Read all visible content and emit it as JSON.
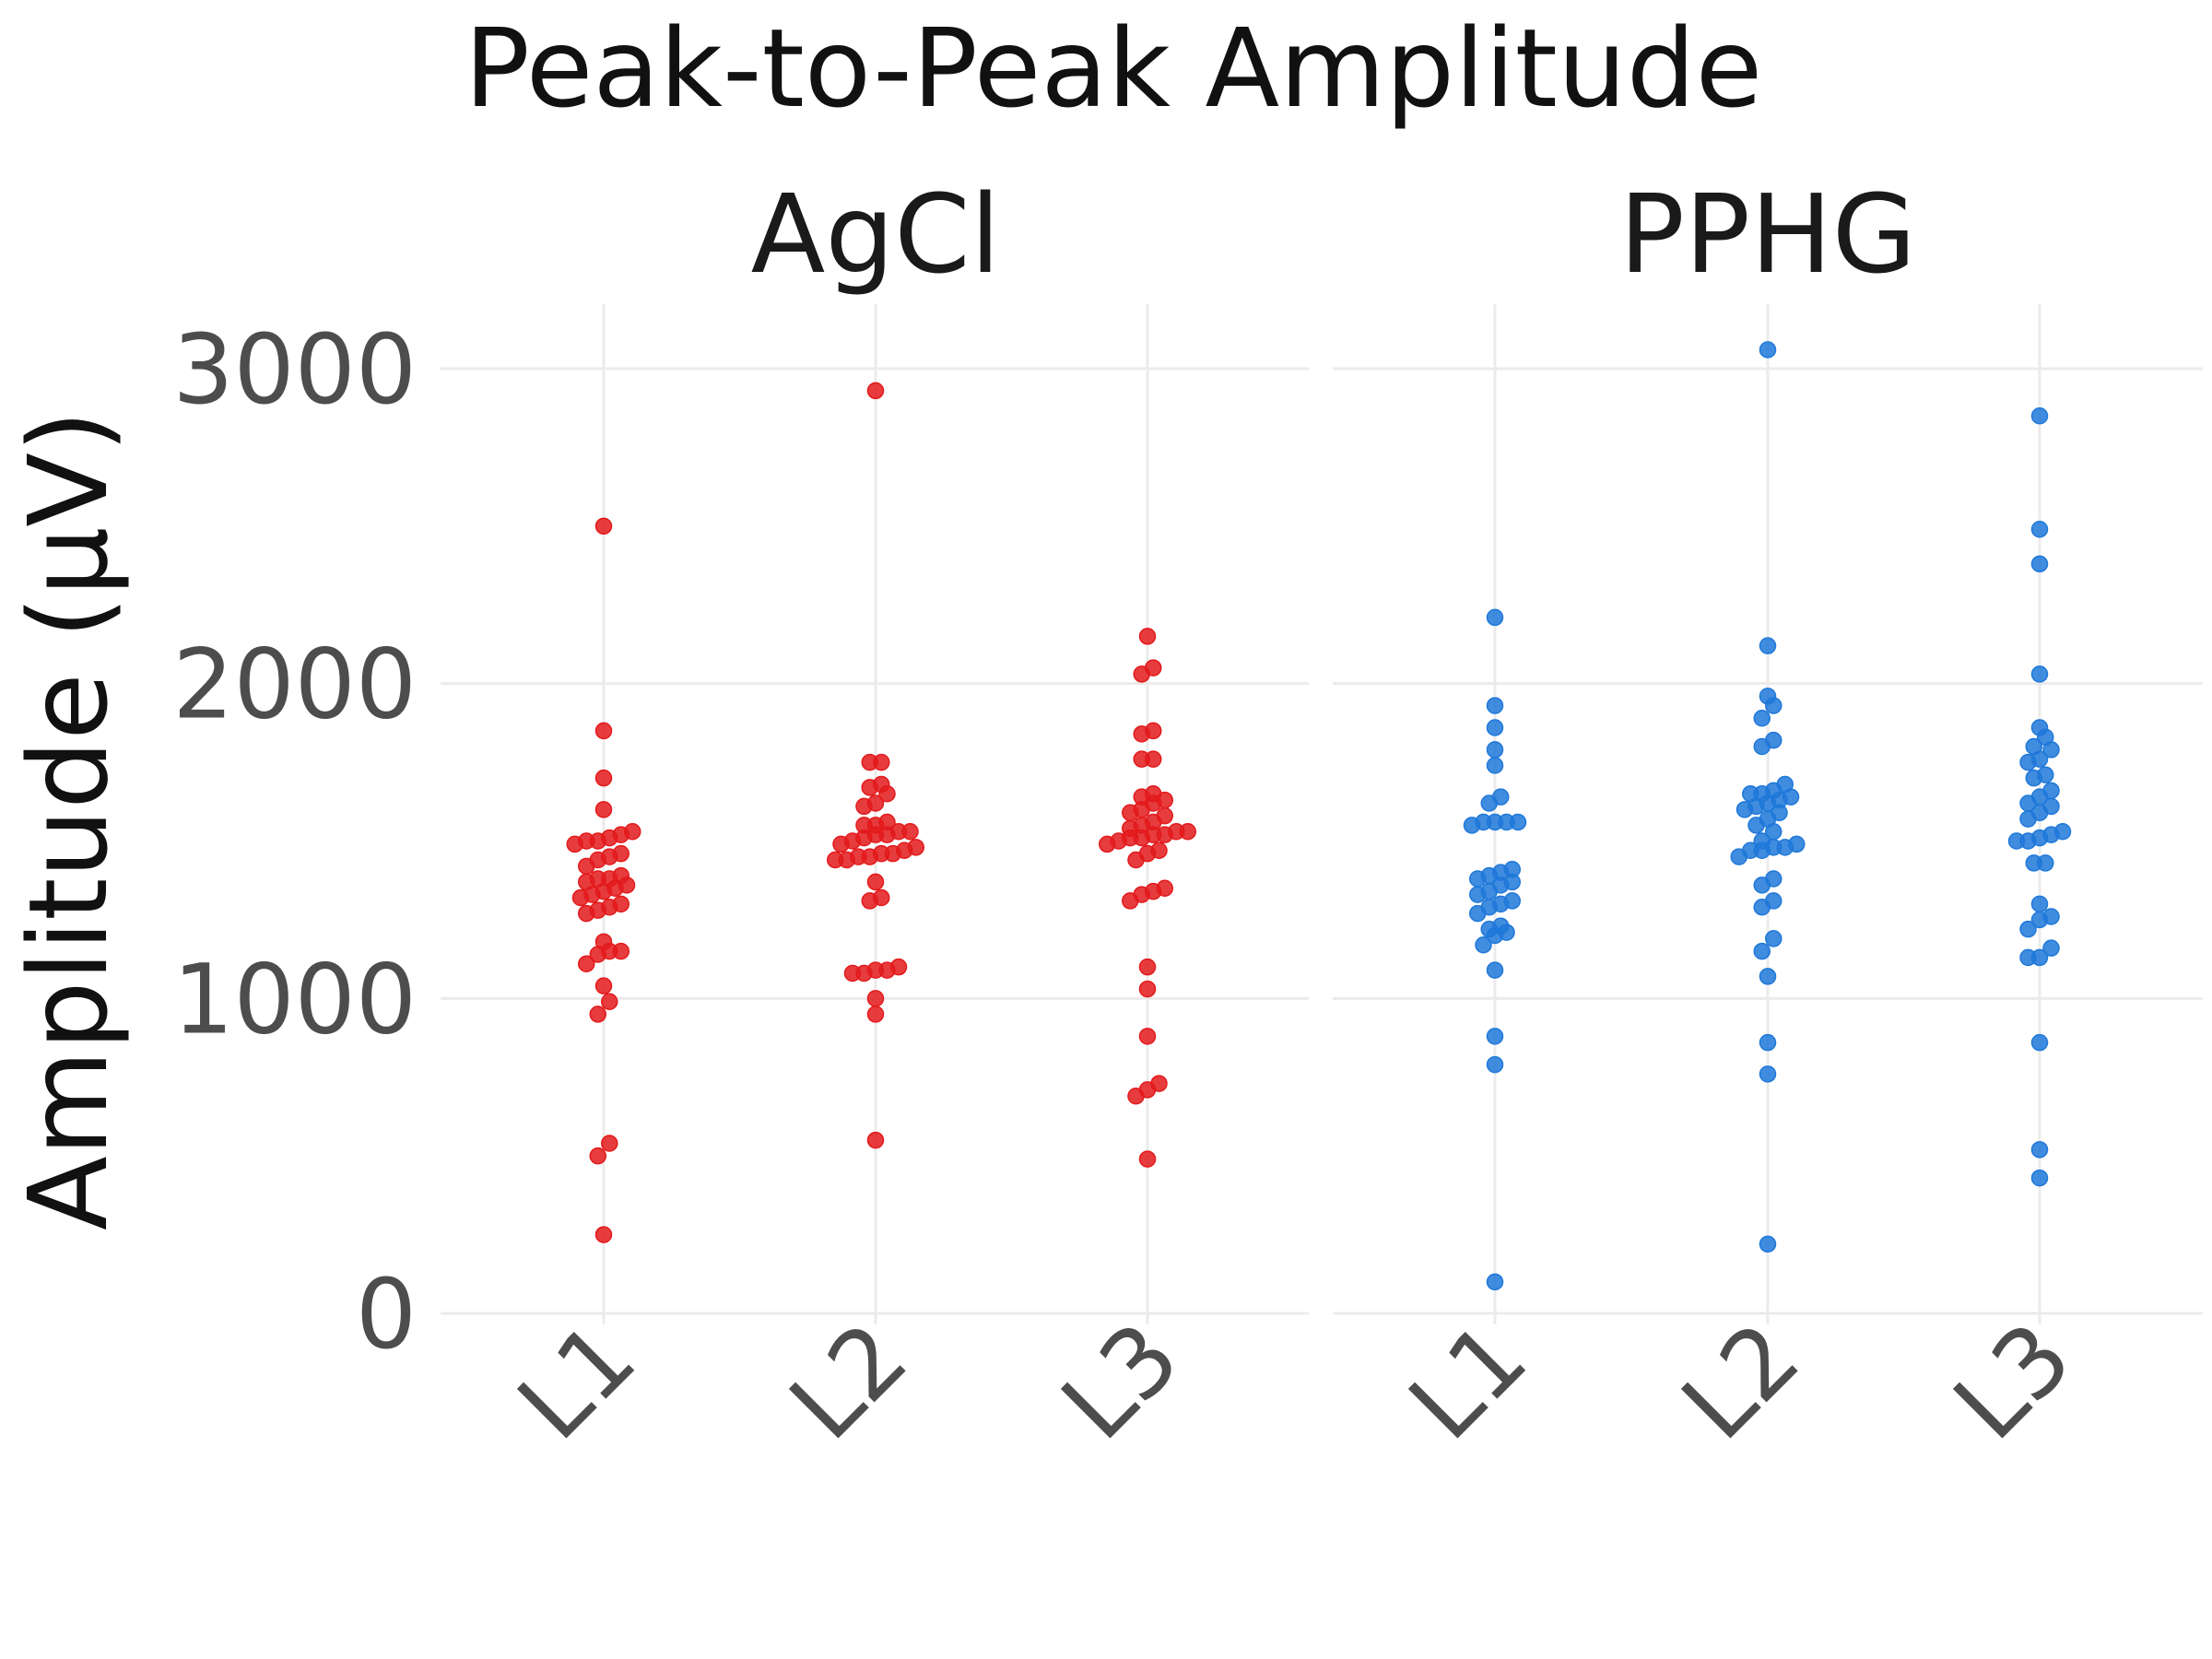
{
  "chart_data": {
    "type": "scatter",
    "title": "Peak-to-Peak Amplitude",
    "ylabel": "Amplitude (µV)",
    "xlabel": "",
    "ylim": [
      0,
      3000
    ],
    "yticks": [
      0,
      1000,
      2000,
      3000
    ],
    "categories": [
      "L1",
      "L2",
      "L3"
    ],
    "grid": true,
    "panels": [
      {
        "name": "AgCl",
        "color": "#E31A1C",
        "groups": {
          "L1": [
            2500,
            1850,
            1700,
            1600,
            1530,
            1520,
            1510,
            1500,
            1500,
            1490,
            1460,
            1450,
            1440,
            1420,
            1390,
            1380,
            1380,
            1370,
            1360,
            1350,
            1340,
            1330,
            1320,
            1300,
            1290,
            1280,
            1270,
            1180,
            1150,
            1150,
            1140,
            1110,
            1040,
            990,
            950,
            540,
            500,
            250
          ],
          "L2": [
            2930,
            1750,
            1750,
            1680,
            1670,
            1650,
            1620,
            1610,
            1560,
            1550,
            1550,
            1530,
            1530,
            1520,
            1520,
            1510,
            1500,
            1490,
            1480,
            1470,
            1460,
            1460,
            1450,
            1450,
            1440,
            1440,
            1370,
            1320,
            1310,
            1100,
            1090,
            1090,
            1080,
            1080,
            1000,
            950,
            550
          ],
          "L3": [
            2150,
            2050,
            2030,
            1850,
            1840,
            1760,
            1760,
            1650,
            1640,
            1630,
            1620,
            1600,
            1590,
            1580,
            1560,
            1550,
            1540,
            1530,
            1530,
            1520,
            1520,
            1510,
            1510,
            1500,
            1490,
            1470,
            1460,
            1440,
            1350,
            1340,
            1330,
            1310,
            1100,
            1030,
            880,
            730,
            710,
            690,
            490
          ]
        }
      },
      {
        "name": "PPHG",
        "color": "#1F78D9",
        "groups": {
          "L1": [
            2210,
            1930,
            1860,
            1790,
            1740,
            1640,
            1620,
            1560,
            1560,
            1560,
            1560,
            1550,
            1410,
            1400,
            1390,
            1380,
            1370,
            1360,
            1340,
            1330,
            1310,
            1300,
            1290,
            1270,
            1230,
            1220,
            1210,
            1200,
            1170,
            1090,
            880,
            790,
            100
          ],
          "L2": [
            3060,
            2120,
            1960,
            1930,
            1890,
            1820,
            1800,
            1680,
            1660,
            1650,
            1650,
            1640,
            1630,
            1620,
            1610,
            1600,
            1590,
            1570,
            1550,
            1530,
            1500,
            1490,
            1480,
            1480,
            1470,
            1470,
            1450,
            1380,
            1360,
            1310,
            1290,
            1190,
            1150,
            1070,
            860,
            760,
            220
          ],
          "L3": [
            2850,
            2490,
            2380,
            2030,
            1860,
            1830,
            1800,
            1790,
            1760,
            1750,
            1710,
            1700,
            1660,
            1640,
            1620,
            1610,
            1590,
            1570,
            1530,
            1520,
            1510,
            1500,
            1500,
            1430,
            1430,
            1300,
            1260,
            1250,
            1220,
            1160,
            1130,
            1130,
            860,
            520,
            430
          ]
        }
      }
    ]
  }
}
